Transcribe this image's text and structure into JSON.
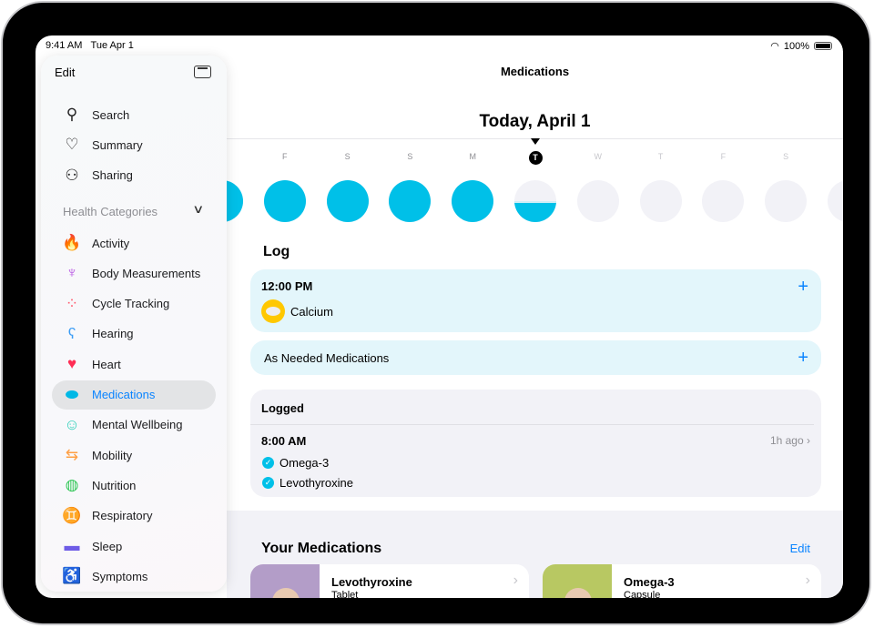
{
  "status": {
    "time": "9:41 AM",
    "date": "Tue Apr 1",
    "battery": "100%"
  },
  "sidebar": {
    "edit_label": "Edit",
    "top_items": [
      {
        "label": "Search",
        "icon": "search-icon"
      },
      {
        "label": "Summary",
        "icon": "heart-outline-icon"
      },
      {
        "label": "Sharing",
        "icon": "people-icon"
      }
    ],
    "section_label": "Health Categories",
    "items": [
      {
        "label": "Activity",
        "icon": "flame-icon",
        "color": "#ff4f00"
      },
      {
        "label": "Body Measurements",
        "icon": "figure-icon",
        "color": "#b44be1"
      },
      {
        "label": "Cycle Tracking",
        "icon": "cycle-dots-icon",
        "color": "#ff5a6e"
      },
      {
        "label": "Hearing",
        "icon": "ear-icon",
        "color": "#3b9cf5"
      },
      {
        "label": "Heart",
        "icon": "heart-icon",
        "color": "#ff2d55"
      },
      {
        "label": "Medications",
        "icon": "pills-icon",
        "color": "#00b8e6",
        "selected": true
      },
      {
        "label": "Mental Wellbeing",
        "icon": "head-icon",
        "color": "#2ccfb8"
      },
      {
        "label": "Mobility",
        "icon": "arrows-icon",
        "color": "#ff9f43"
      },
      {
        "label": "Nutrition",
        "icon": "apple-icon",
        "color": "#34c759"
      },
      {
        "label": "Respiratory",
        "icon": "lungs-icon",
        "color": "#00b8e6"
      },
      {
        "label": "Sleep",
        "icon": "bed-icon",
        "color": "#6e5ce6"
      },
      {
        "label": "Symptoms",
        "icon": "symptoms-icon",
        "color": "#6e5ce6"
      }
    ]
  },
  "main": {
    "title": "Medications",
    "date_heading": "Today, April 1",
    "days": [
      {
        "letter": "",
        "adherence": 1
      },
      {
        "letter": "F",
        "adherence": 1
      },
      {
        "letter": "S",
        "adherence": 1
      },
      {
        "letter": "S",
        "adherence": 1
      },
      {
        "letter": "M",
        "adherence": 1
      },
      {
        "letter": "T",
        "adherence": 0.5,
        "today": true
      },
      {
        "letter": "W",
        "adherence": 0
      },
      {
        "letter": "T",
        "adherence": 0
      },
      {
        "letter": "F",
        "adherence": 0
      },
      {
        "letter": "S",
        "adherence": 0
      },
      {
        "letter": "",
        "adherence": 0
      }
    ],
    "log_heading": "Log",
    "scheduled": {
      "time": "12:00 PM",
      "medication": "Calcium"
    },
    "as_needed_label": "As Needed Medications",
    "logged": {
      "heading": "Logged",
      "time": "8:00 AM",
      "ago": "1h ago",
      "items": [
        "Omega-3",
        "Levothyroxine"
      ]
    },
    "your_meds_heading": "Your Medications",
    "edit_label": "Edit",
    "meds": [
      {
        "name": "Levothyroxine",
        "type": "Tablet",
        "color": "#b39dc8"
      },
      {
        "name": "Omega-3",
        "type": "Capsule",
        "color": "#b8c862"
      }
    ]
  },
  "colors": {
    "accent": "#0a84ff",
    "ring": "#00c0e8"
  }
}
